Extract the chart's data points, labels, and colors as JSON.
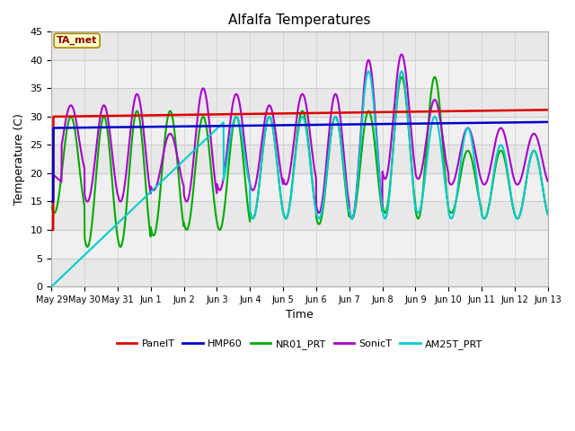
{
  "title": "Alfalfa Temperatures",
  "xlabel": "Time",
  "ylabel": "Temperature (C)",
  "ylim": [
    0,
    45
  ],
  "yticks": [
    0,
    5,
    10,
    15,
    20,
    25,
    30,
    35,
    40,
    45
  ],
  "annotation_text": "TA_met",
  "annotation_color": "#8b0000",
  "annotation_bg": "#ffffcc",
  "annotation_border": "#aa8800",
  "figure_bg": "#ffffff",
  "plot_bg": "#e8e8e8",
  "band_light": "#f0f0f0",
  "band_dark": "#e0e0e0",
  "grid_color": "#cccccc",
  "series": [
    {
      "label": "PanelT",
      "color": "#dd0000",
      "lw": 1.8
    },
    {
      "label": "HMP60",
      "color": "#0000cc",
      "lw": 1.8
    },
    {
      "label": "NR01_PRT",
      "color": "#00aa00",
      "lw": 1.5
    },
    {
      "label": "SonicT",
      "color": "#aa00cc",
      "lw": 1.5
    },
    {
      "label": "AM25T_PRT",
      "color": "#00cccc",
      "lw": 1.5
    }
  ],
  "x_tick_labels": [
    "May 29",
    "May 30",
    "May 31",
    "Jun 1",
    "Jun 2",
    "Jun 3",
    "Jun 4",
    "Jun 5",
    "Jun 6",
    "Jun 7",
    "Jun 8",
    "Jun 9",
    "Jun 10",
    "Jun 11",
    "Jun 12",
    "Jun 13"
  ],
  "num_days": 15
}
